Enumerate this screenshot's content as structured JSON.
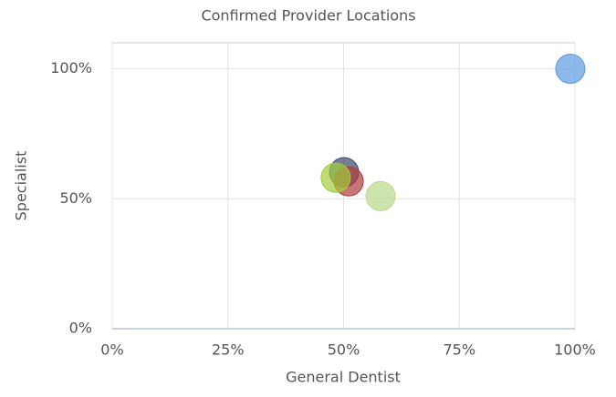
{
  "chart_data": {
    "type": "scatter",
    "title": "Confirmed Provider Locations",
    "x_label": "General Dentist",
    "y_label": "Specialist",
    "x": [
      99,
      50.1,
      51.1,
      48.3,
      58
    ],
    "values": [
      100,
      60.2,
      56.7,
      58.1,
      51
    ],
    "colors": [
      "#5b9be0",
      "#3b4a6b",
      "#b03a3a",
      "#a3cc3c",
      "#b9d98c"
    ],
    "xlim": [
      0,
      100
    ],
    "xticks": [
      {
        "value": 0,
        "label": "0%"
      },
      {
        "value": 25,
        "label": "25%"
      },
      {
        "value": 50,
        "label": "50%"
      },
      {
        "value": 75,
        "label": "75%"
      },
      {
        "value": 100,
        "label": "100%"
      }
    ],
    "ylim": [
      0,
      110
    ],
    "yticks": [
      {
        "value": 0,
        "label": "0%"
      },
      {
        "value": 50,
        "label": "50%"
      },
      {
        "value": 100,
        "label": "100%"
      }
    ],
    "grid": true
  }
}
